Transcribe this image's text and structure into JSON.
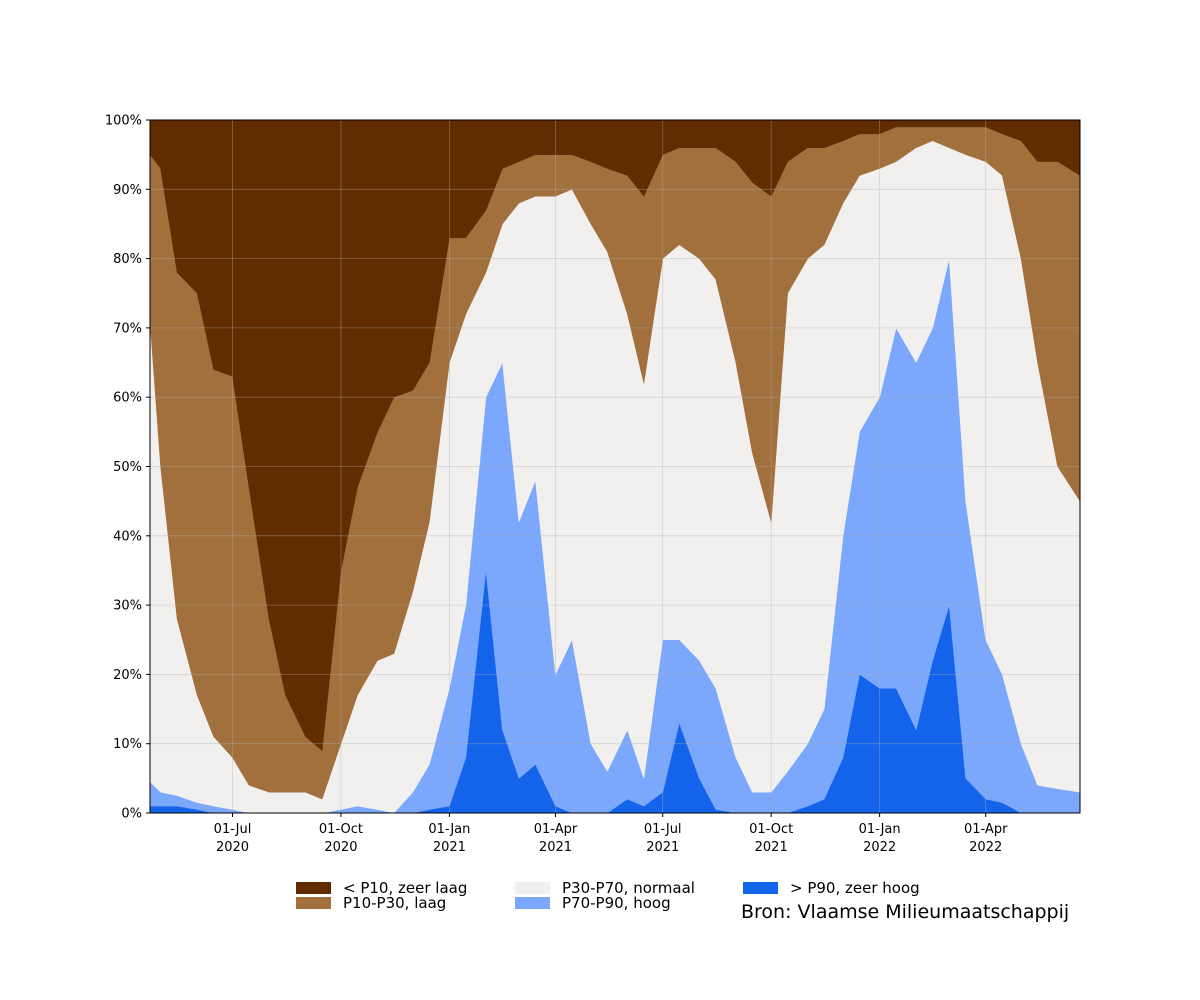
{
  "chart_data": {
    "type": "stacked-area",
    "x": [
      "2020-04-22",
      "2020-05-01",
      "2020-05-15",
      "2020-06-01",
      "2020-06-15",
      "2020-07-01",
      "2020-07-15",
      "2020-08-01",
      "2020-08-15",
      "2020-09-01",
      "2020-09-15",
      "2020-10-01",
      "2020-10-15",
      "2020-11-01",
      "2020-11-15",
      "2020-12-01",
      "2020-12-15",
      "2021-01-01",
      "2021-01-15",
      "2021-02-01",
      "2021-02-15",
      "2021-03-01",
      "2021-03-15",
      "2021-04-01",
      "2021-04-15",
      "2021-05-01",
      "2021-05-15",
      "2021-06-01",
      "2021-06-15",
      "2021-07-01",
      "2021-07-15",
      "2021-08-01",
      "2021-08-15",
      "2021-09-01",
      "2021-09-15",
      "2021-10-01",
      "2021-10-15",
      "2021-11-01",
      "2021-11-15",
      "2021-12-01",
      "2021-12-15",
      "2022-01-01",
      "2022-01-15",
      "2022-02-01",
      "2022-02-15",
      "2022-03-01",
      "2022-03-15",
      "2022-04-01",
      "2022-04-15",
      "2022-05-01",
      "2022-05-15",
      "2022-06-01",
      "2022-06-20"
    ],
    "series": [
      {
        "name": "< P10, zeer laag",
        "color": "#612c00",
        "values": [
          5,
          7,
          22,
          25,
          36,
          37,
          53,
          72,
          83,
          89,
          91,
          65,
          53,
          45,
          40,
          39,
          35,
          17,
          17,
          13,
          7,
          6,
          5,
          5,
          5,
          6,
          7,
          8,
          11,
          5,
          4,
          4,
          4,
          6,
          9,
          11,
          6,
          4,
          4,
          3,
          2,
          2,
          1,
          1,
          1,
          1,
          1,
          1,
          2,
          3,
          6,
          6,
          8
        ]
      },
      {
        "name": "P10-P30, laag",
        "color": "#a2703d",
        "values": [
          24,
          43,
          50,
          58,
          53,
          55,
          43,
          25,
          14,
          8,
          7,
          25,
          30,
          33,
          37,
          29,
          23,
          18,
          11,
          9,
          8,
          6,
          6,
          6,
          5,
          9,
          12,
          20,
          27,
          15,
          14,
          16,
          19,
          29,
          39,
          47,
          19,
          16,
          14,
          9,
          6,
          5,
          5,
          3,
          2,
          3,
          4,
          5,
          6,
          17,
          29,
          44,
          47
        ]
      },
      {
        "name": "P30-P70, normaal",
        "color": "#f2f0ef",
        "values": [
          66.5,
          47,
          25.5,
          15.5,
          10,
          7.5,
          4,
          3,
          3,
          3,
          2,
          9.5,
          16,
          21.5,
          23,
          29,
          35,
          47,
          42,
          18,
          20,
          46,
          41,
          69,
          65,
          75,
          75,
          60,
          57,
          55,
          57,
          58,
          59,
          57,
          49,
          39,
          69,
          70,
          67,
          48,
          37,
          33,
          24,
          31,
          27,
          16,
          50,
          69,
          72,
          70,
          61,
          46.5,
          42
        ]
      },
      {
        "name": "P70-P90, hoog",
        "color": "#7ba7fd",
        "values": [
          3.5,
          2,
          1.5,
          1,
          1,
          0.5,
          0,
          0,
          0,
          0,
          0,
          0.5,
          1,
          0.5,
          0,
          3,
          6.5,
          17,
          22,
          25,
          53,
          37,
          41,
          19,
          25,
          10,
          6,
          10,
          4,
          22,
          12,
          17,
          17.5,
          8,
          3,
          3,
          6,
          9,
          13,
          32,
          35,
          42,
          52,
          53,
          48,
          50,
          40,
          23,
          18.5,
          10,
          4,
          3.5,
          3
        ]
      },
      {
        "name": "> P90, zeer hoog",
        "color": "#1464eb",
        "values": [
          1,
          1,
          1,
          0.5,
          0,
          0,
          0,
          0,
          0,
          0,
          0,
          0,
          0,
          0,
          0,
          0,
          0.5,
          1,
          8,
          35,
          12,
          5,
          7,
          1,
          0,
          0,
          0,
          2,
          1,
          3,
          13,
          5,
          0.5,
          0,
          0,
          0,
          0,
          1,
          2,
          8,
          20,
          18,
          18,
          12,
          22,
          30,
          5,
          2,
          1.5,
          0,
          0,
          0,
          0
        ]
      }
    ],
    "xlim": [
      "2020-04-22",
      "2022-06-20"
    ],
    "xticks": [
      {
        "value": "2020-07-01",
        "label": "01-Jul\n2020"
      },
      {
        "value": "2020-10-01",
        "label": "01-Oct\n2020"
      },
      {
        "value": "2021-01-01",
        "label": "01-Jan\n2021"
      },
      {
        "value": "2021-04-01",
        "label": "01-Apr\n2021"
      },
      {
        "value": "2021-07-01",
        "label": "01-Jul\n2021"
      },
      {
        "value": "2021-10-01",
        "label": "01-Oct\n2021"
      },
      {
        "value": "2022-01-01",
        "label": "01-Jan\n2022"
      },
      {
        "value": "2022-04-01",
        "label": "01-Apr\n2022"
      }
    ],
    "ylim": [
      0,
      100
    ],
    "yticks": [
      {
        "value": 0,
        "label": "0%"
      },
      {
        "value": 10,
        "label": "10%"
      },
      {
        "value": 20,
        "label": "20%"
      },
      {
        "value": 30,
        "label": "30%"
      },
      {
        "value": 40,
        "label": "40%"
      },
      {
        "value": 50,
        "label": "50%"
      },
      {
        "value": 60,
        "label": "60%"
      },
      {
        "value": 70,
        "label": "70%"
      },
      {
        "value": 80,
        "label": "80%"
      },
      {
        "value": 90,
        "label": "90%"
      },
      {
        "value": 100,
        "label": "100%"
      }
    ],
    "grid": true,
    "annotation": "Bron: Vlaamse Milieumaatschappij"
  }
}
